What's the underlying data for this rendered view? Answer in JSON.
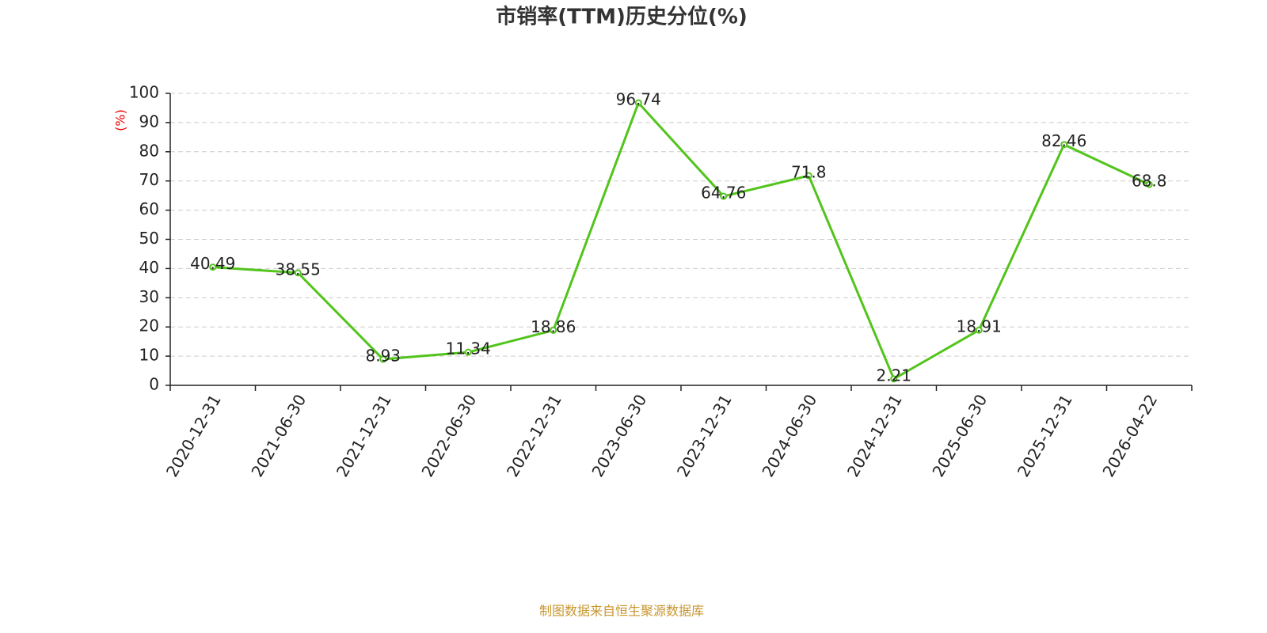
{
  "chart_data": {
    "type": "line",
    "title": "市销率(TTM)历史分位(%)",
    "y_label": "(%)",
    "categories": [
      "2020-12-31",
      "2021-06-30",
      "2021-12-31",
      "2022-06-30",
      "2022-12-31",
      "2023-06-30",
      "2023-12-31",
      "2024-06-30",
      "2024-12-31",
      "2025-06-30",
      "2025-12-31",
      "2026-04-22"
    ],
    "values": [
      40.49,
      38.55,
      8.93,
      11.34,
      18.86,
      96.74,
      64.76,
      71.8,
      2.21,
      18.91,
      82.46,
      68.8
    ],
    "color": "#52c41a",
    "ylim": [
      0,
      100
    ],
    "yticks": [
      0,
      10,
      20,
      30,
      40,
      50,
      60,
      70,
      80,
      90,
      100
    ],
    "grid": true,
    "source": "制图数据来自恒生聚源数据库"
  }
}
